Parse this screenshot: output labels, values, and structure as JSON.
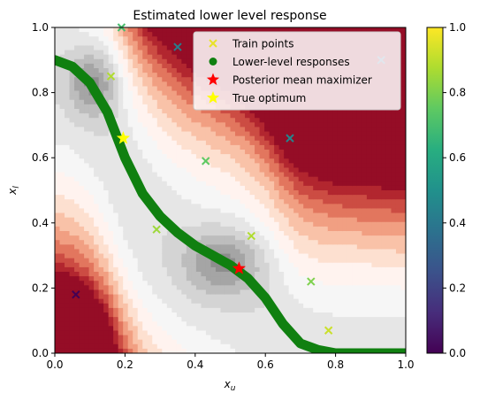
{
  "chart_data": {
    "type": "contour",
    "title": "Estimated lower level response",
    "xlabel": "x_u",
    "ylabel": "x_l",
    "xlim": [
      0,
      1
    ],
    "ylim": [
      0,
      1
    ],
    "xticks": [
      "0.0",
      "0.2",
      "0.4",
      "0.6",
      "0.8",
      "1.0"
    ],
    "yticks": [
      "0.0",
      "0.2",
      "0.4",
      "0.6",
      "0.8",
      "1.0"
    ],
    "colormap": "RdGy",
    "colorbar": {
      "colormap": "viridis",
      "range": [
        0,
        1
      ],
      "ticks": [
        "0.0",
        "0.2",
        "0.4",
        "0.6",
        "0.8",
        "1.0"
      ]
    },
    "legend": {
      "placement": "top-right",
      "entries": [
        {
          "label": "Train points",
          "marker": "x",
          "color": "#e8e228"
        },
        {
          "label": "Lower-level responses",
          "marker": "circle",
          "color": "#108010"
        },
        {
          "label": "Posterior mean maximizer",
          "marker": "star",
          "color": "#ff0000"
        },
        {
          "label": "True optimum",
          "marker": "star",
          "color": "#ffff00"
        }
      ]
    },
    "train_points": [
      {
        "x": 0.06,
        "y": 0.18,
        "value": 0.0
      },
      {
        "x": 0.16,
        "y": 0.85,
        "value": 0.88
      },
      {
        "x": 0.19,
        "y": 1.0,
        "value": 0.7
      },
      {
        "x": 0.29,
        "y": 0.38,
        "value": 0.85
      },
      {
        "x": 0.35,
        "y": 0.94,
        "value": 0.42
      },
      {
        "x": 0.43,
        "y": 0.59,
        "value": 0.75
      },
      {
        "x": 0.56,
        "y": 0.36,
        "value": 0.88
      },
      {
        "x": 0.67,
        "y": 0.66,
        "value": 0.45
      },
      {
        "x": 0.73,
        "y": 0.22,
        "value": 0.8
      },
      {
        "x": 0.78,
        "y": 0.07,
        "value": 0.92
      },
      {
        "x": 0.93,
        "y": 0.9,
        "value": 0.3
      }
    ],
    "lower_level_response": {
      "x": [
        0.0,
        0.05,
        0.1,
        0.15,
        0.2,
        0.25,
        0.3,
        0.35,
        0.4,
        0.45,
        0.5,
        0.55,
        0.6,
        0.65,
        0.7,
        0.75,
        0.8,
        0.85,
        0.9,
        0.95,
        1.0
      ],
      "y": [
        0.9,
        0.88,
        0.83,
        0.74,
        0.6,
        0.49,
        0.42,
        0.37,
        0.33,
        0.3,
        0.27,
        0.23,
        0.17,
        0.09,
        0.03,
        0.01,
        0.0,
        0.0,
        0.0,
        0.0,
        0.0
      ]
    },
    "posterior_mean_maximizer": {
      "x": 0.525,
      "y": 0.26
    },
    "true_optimum": {
      "x": 0.195,
      "y": 0.66
    }
  }
}
